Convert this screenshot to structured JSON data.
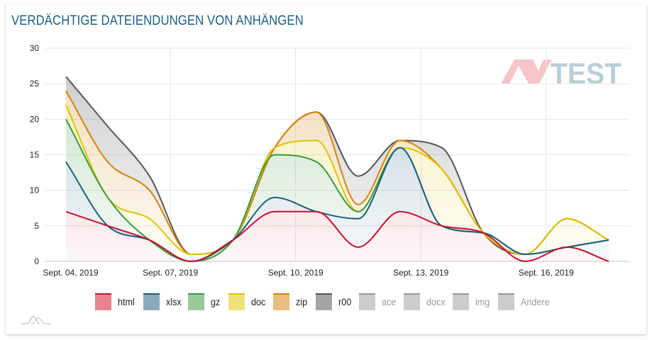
{
  "title": "VERDÄCHTIGE DATEIENDUNGEN VON ANHÄNGEN",
  "watermark": "AV-TEST",
  "chart_data": {
    "type": "area",
    "stacked": true,
    "smooth": true,
    "title": "VERDÄCHTIGE DATEIENDUNGEN VON ANHÄNGEN",
    "xlabel": "",
    "ylabel": "",
    "ylim": [
      0,
      30
    ],
    "yticks": [
      0,
      5,
      10,
      15,
      20,
      25,
      30
    ],
    "x": [
      "2019-09-04",
      "2019-09-05",
      "2019-09-06",
      "2019-09-07",
      "2019-09-08",
      "2019-09-09",
      "2019-09-10",
      "2019-09-11",
      "2019-09-12",
      "2019-09-13",
      "2019-09-14",
      "2019-09-15",
      "2019-09-16",
      "2019-09-17"
    ],
    "xtick_labels": [
      {
        "index": 0,
        "label": "Sept. 04, 2019"
      },
      {
        "index": 3,
        "label": "Sept. 07, 2019"
      },
      {
        "index": 6,
        "label": "Sept. 10, 2019"
      },
      {
        "index": 9,
        "label": "Sept. 13, 2019"
      },
      {
        "index": 12,
        "label": "Sept. 16, 2019"
      }
    ],
    "grid": true,
    "legend_position": "bottom",
    "series": [
      {
        "name": "html",
        "color": "#c8102e",
        "fill": "#e8838f",
        "visible": true,
        "values": [
          7,
          5,
          3,
          0,
          3,
          7,
          7,
          2,
          7,
          5,
          4,
          0,
          2,
          0
        ]
      },
      {
        "name": "xlsx",
        "color": "#1a5f82",
        "fill": "#8aaabb",
        "visible": true,
        "values": [
          7,
          0,
          0,
          0,
          0,
          2,
          0,
          4,
          9,
          0,
          0,
          1,
          0,
          3
        ]
      },
      {
        "name": "gz",
        "color": "#3a9a3a",
        "fill": "#9aca96",
        "visible": true,
        "values": [
          6,
          4,
          0,
          0,
          0,
          6,
          7,
          1,
          0,
          0,
          0,
          0,
          0,
          0
        ]
      },
      {
        "name": "doc",
        "color": "#e0c400",
        "fill": "#efe27c",
        "visible": true,
        "values": [
          2,
          0,
          3,
          1,
          0,
          1,
          3,
          0,
          0,
          8,
          0,
          0,
          4,
          0
        ]
      },
      {
        "name": "zip",
        "color": "#d4840c",
        "fill": "#e8bd80",
        "visible": true,
        "values": [
          2,
          5,
          4,
          0,
          0,
          0,
          4,
          1,
          1,
          0,
          0,
          0,
          0,
          0
        ]
      },
      {
        "name": "r00",
        "color": "#555555",
        "fill": "#a5a5a5",
        "visible": true,
        "values": [
          2,
          5,
          2,
          0,
          0,
          0,
          0,
          4,
          0,
          3,
          0,
          0,
          0,
          0
        ]
      },
      {
        "name": "ace",
        "color": "#999999",
        "fill": "#cccccc",
        "visible": false,
        "values": []
      },
      {
        "name": "docx",
        "color": "#999999",
        "fill": "#cccccc",
        "visible": false,
        "values": []
      },
      {
        "name": "img",
        "color": "#999999",
        "fill": "#cccccc",
        "visible": false,
        "values": []
      },
      {
        "name": "Andere",
        "color": "#999999",
        "fill": "#cccccc",
        "visible": false,
        "values": []
      }
    ]
  }
}
